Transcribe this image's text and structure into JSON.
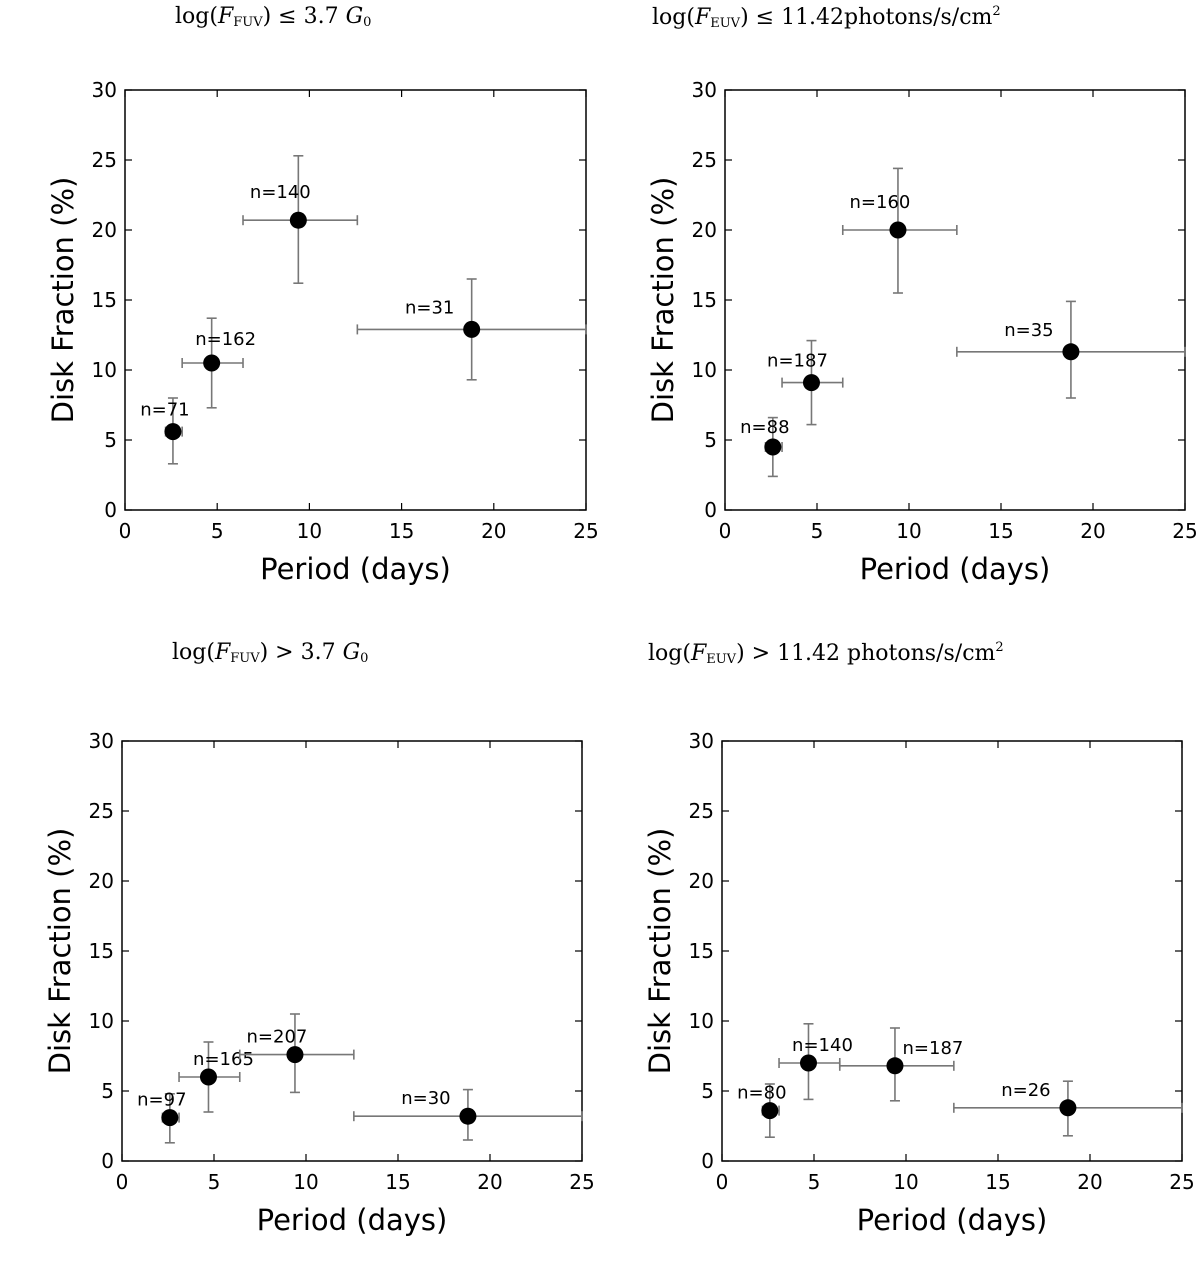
{
  "chart_data": [
    {
      "type": "scatter",
      "title_parts": {
        "pre": "log(",
        "var": "F",
        "sub": "FUV",
        "post": ") ≤ 3.7 ",
        "unit_var": "G",
        "unit_sub": "0",
        "sup": ""
      },
      "xlabel": "Period (days)",
      "ylabel": "Disk Fraction (%)",
      "xlim": [
        0,
        25
      ],
      "ylim": [
        0,
        30
      ],
      "xticks": [
        0,
        5,
        10,
        15,
        20,
        25
      ],
      "yticks": [
        0,
        5,
        10,
        15,
        20,
        25,
        30
      ],
      "points": [
        {
          "x": 2.6,
          "y": 5.6,
          "xerr": [
            2.2,
            3.1
          ],
          "yerr": [
            3.3,
            8.0
          ],
          "label": "n=71"
        },
        {
          "x": 4.7,
          "y": 10.5,
          "xerr": [
            3.1,
            6.4
          ],
          "yerr": [
            7.3,
            13.7
          ],
          "label": "n=162"
        },
        {
          "x": 9.4,
          "y": 20.7,
          "xerr": [
            6.4,
            12.6
          ],
          "yerr": [
            16.2,
            25.3
          ],
          "label": "n=140"
        },
        {
          "x": 18.8,
          "y": 12.9,
          "xerr": [
            12.6,
            25.0
          ],
          "yerr": [
            9.3,
            16.5
          ],
          "label": "n=31"
        }
      ]
    },
    {
      "type": "scatter",
      "title_parts": {
        "pre": "log(",
        "var": "F",
        "sub": "EUV",
        "post": ") ≤ 11.42photons/s/cm",
        "unit_var": "",
        "unit_sub": "",
        "sup": "2"
      },
      "xlabel": "Period (days)",
      "ylabel": "Disk Fraction (%)",
      "xlim": [
        0,
        25
      ],
      "ylim": [
        0,
        30
      ],
      "xticks": [
        0,
        5,
        10,
        15,
        20,
        25
      ],
      "yticks": [
        0,
        5,
        10,
        15,
        20,
        25,
        30
      ],
      "points": [
        {
          "x": 2.6,
          "y": 4.5,
          "xerr": [
            2.2,
            3.1
          ],
          "yerr": [
            2.4,
            6.6
          ],
          "label": "n=88"
        },
        {
          "x": 4.7,
          "y": 9.1,
          "xerr": [
            3.1,
            6.4
          ],
          "yerr": [
            6.1,
            12.1
          ],
          "label": "n=187"
        },
        {
          "x": 9.4,
          "y": 20.0,
          "xerr": [
            6.4,
            12.6
          ],
          "yerr": [
            15.5,
            24.4
          ],
          "label": "n=160"
        },
        {
          "x": 18.8,
          "y": 11.3,
          "xerr": [
            12.6,
            25.0
          ],
          "yerr": [
            8.0,
            14.9
          ],
          "label": "n=35"
        }
      ]
    },
    {
      "type": "scatter",
      "title_parts": {
        "pre": "log(",
        "var": "F",
        "sub": "FUV",
        "post": ") > 3.7 ",
        "unit_var": "G",
        "unit_sub": "0",
        "sup": ""
      },
      "xlabel": "Period (days)",
      "ylabel": "Disk Fraction (%)",
      "xlim": [
        0,
        25
      ],
      "ylim": [
        0,
        30
      ],
      "xticks": [
        0,
        5,
        10,
        15,
        20,
        25
      ],
      "yticks": [
        0,
        5,
        10,
        15,
        20,
        25,
        30
      ],
      "points": [
        {
          "x": 2.6,
          "y": 3.1,
          "xerr": [
            2.2,
            3.1
          ],
          "yerr": [
            1.3,
            4.8
          ],
          "label": "n=97"
        },
        {
          "x": 4.7,
          "y": 6.0,
          "xerr": [
            3.1,
            6.4
          ],
          "yerr": [
            3.5,
            8.5
          ],
          "label": "n=165"
        },
        {
          "x": 9.4,
          "y": 7.6,
          "xerr": [
            6.4,
            12.6
          ],
          "yerr": [
            4.9,
            10.5
          ],
          "label": "n=207"
        },
        {
          "x": 18.8,
          "y": 3.2,
          "xerr": [
            12.6,
            25.0
          ],
          "yerr": [
            1.5,
            5.1
          ],
          "label": "n=30"
        }
      ]
    },
    {
      "type": "scatter",
      "title_parts": {
        "pre": "log(",
        "var": "F",
        "sub": "EUV",
        "post": ") > 11.42 photons/s/cm",
        "unit_var": "",
        "unit_sub": "",
        "sup": "2"
      },
      "xlabel": "Period (days)",
      "ylabel": "Disk Fraction (%)",
      "xlim": [
        0,
        25
      ],
      "ylim": [
        0,
        30
      ],
      "xticks": [
        0,
        5,
        10,
        15,
        20,
        25
      ],
      "yticks": [
        0,
        5,
        10,
        15,
        20,
        25,
        30
      ],
      "points": [
        {
          "x": 2.6,
          "y": 3.6,
          "xerr": [
            2.2,
            3.1
          ],
          "yerr": [
            1.7,
            5.5
          ],
          "label": "n=80"
        },
        {
          "x": 4.7,
          "y": 7.0,
          "xerr": [
            3.1,
            6.4
          ],
          "yerr": [
            4.4,
            9.8
          ],
          "label": "n=140"
        },
        {
          "x": 9.4,
          "y": 6.8,
          "xerr": [
            6.4,
            12.6
          ],
          "yerr": [
            4.3,
            9.5
          ],
          "label": "n=187"
        },
        {
          "x": 18.8,
          "y": 3.8,
          "xerr": [
            12.6,
            25.0
          ],
          "yerr": [
            1.8,
            5.7
          ],
          "label": "n=26"
        }
      ]
    }
  ]
}
